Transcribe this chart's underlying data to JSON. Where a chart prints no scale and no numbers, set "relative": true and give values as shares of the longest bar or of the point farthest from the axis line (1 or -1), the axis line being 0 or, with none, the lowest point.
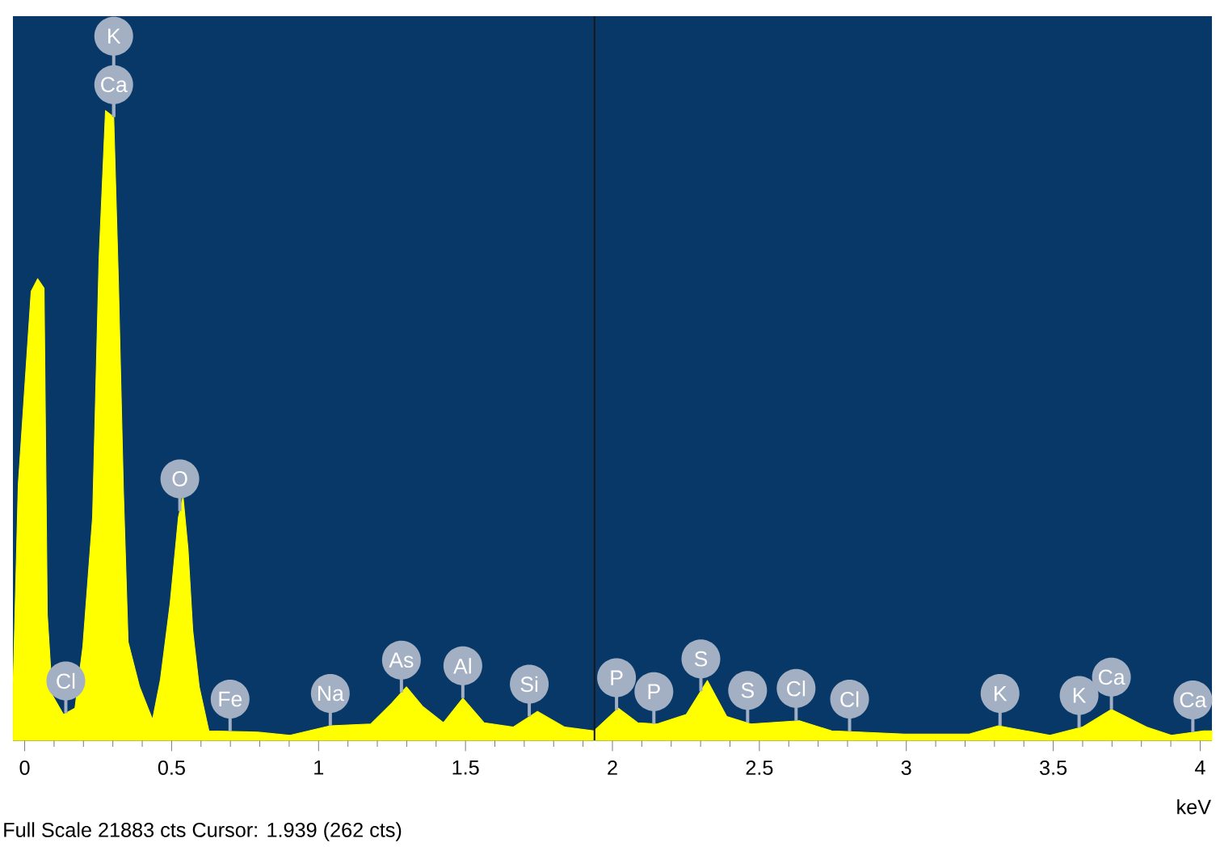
{
  "chart_data": {
    "type": "area",
    "relative": true,
    "color": "#ffff00",
    "xlabel": "keV",
    "xlim": [
      -0.04,
      4.04
    ],
    "xticks": [
      0,
      0.5,
      1,
      1.5,
      2,
      2.5,
      3,
      3.5,
      4
    ],
    "x": [
      -0.039,
      -0.022,
      0.022,
      0.044,
      0.066,
      0.077,
      0.094,
      0.132,
      0.171,
      0.198,
      0.231,
      0.253,
      0.275,
      0.303,
      0.319,
      0.336,
      0.352,
      0.391,
      0.435,
      0.462,
      0.495,
      0.523,
      0.539,
      0.556,
      0.572,
      0.594,
      0.627,
      0.793,
      0.903,
      1.04,
      1.178,
      1.249,
      1.299,
      1.354,
      1.425,
      1.491,
      1.563,
      1.662,
      1.745,
      1.838,
      1.937,
      2.02,
      2.086,
      2.152,
      2.251,
      2.323,
      2.389,
      2.471,
      2.636,
      2.746,
      2.994,
      3.214,
      3.313,
      3.489,
      3.599,
      3.698,
      3.819,
      3.902,
      4.012,
      4.04
    ],
    "values": [
      0.09,
      0.405,
      0.713,
      0.733,
      0.718,
      0.2,
      0.072,
      0.041,
      0.051,
      0.149,
      0.354,
      0.764,
      1.0,
      0.99,
      0.728,
      0.397,
      0.156,
      0.085,
      0.033,
      0.097,
      0.218,
      0.354,
      0.387,
      0.303,
      0.174,
      0.085,
      0.015,
      0.013,
      0.008,
      0.023,
      0.026,
      0.059,
      0.085,
      0.054,
      0.028,
      0.067,
      0.028,
      0.021,
      0.046,
      0.021,
      0.015,
      0.051,
      0.028,
      0.026,
      0.041,
      0.095,
      0.038,
      0.026,
      0.031,
      0.015,
      0.01,
      0.01,
      0.023,
      0.008,
      0.021,
      0.049,
      0.021,
      0.008,
      0.015,
      0.015
    ],
    "ref_lines": [
      {
        "axis": "x",
        "value": 1.939,
        "color": "#1a1a1a"
      }
    ],
    "annotations": [
      {
        "text": "Ca",
        "x": 0.303,
        "y": 0.99
      },
      {
        "text": "K",
        "x": 0.303,
        "y": 0.99
      },
      {
        "text": "Cl",
        "x": 0.14,
        "y": 0.043
      },
      {
        "text": "O",
        "x": 0.528,
        "y": 0.364
      },
      {
        "text": "Fe",
        "x": 0.699,
        "y": 0.014
      },
      {
        "text": "Na",
        "x": 1.04,
        "y": 0.023
      },
      {
        "text": "As",
        "x": 1.282,
        "y": 0.076
      },
      {
        "text": "Al",
        "x": 1.491,
        "y": 0.067
      },
      {
        "text": "Si",
        "x": 1.717,
        "y": 0.038
      },
      {
        "text": "P",
        "x": 2.014,
        "y": 0.048
      },
      {
        "text": "P",
        "x": 2.141,
        "y": 0.026
      },
      {
        "text": "S",
        "x": 2.301,
        "y": 0.078
      },
      {
        "text": "S",
        "x": 2.46,
        "y": 0.028
      },
      {
        "text": "Cl",
        "x": 2.625,
        "y": 0.031
      },
      {
        "text": "Cl",
        "x": 2.807,
        "y": 0.014
      },
      {
        "text": "K",
        "x": 3.319,
        "y": 0.023
      },
      {
        "text": "K",
        "x": 3.588,
        "y": 0.02
      },
      {
        "text": "Ca",
        "x": 3.698,
        "y": 0.049
      },
      {
        "text": "Ca",
        "x": 3.975,
        "y": 0.013
      },
      "Full Scale 21883 cts Cursor: 1.939  (262 cts)"
    ]
  }
}
